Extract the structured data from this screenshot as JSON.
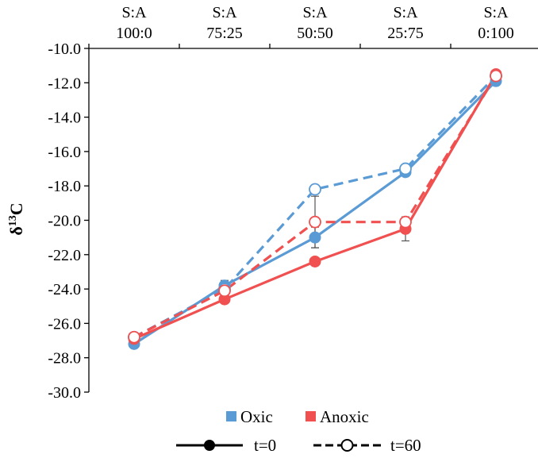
{
  "chart_data": {
    "type": "line",
    "categories": [
      {
        "top": "S:A",
        "bottom": "100:0"
      },
      {
        "top": "S:A",
        "bottom": "75:25"
      },
      {
        "top": "S:A",
        "bottom": "50:50"
      },
      {
        "top": "S:A",
        "bottom": "25:75"
      },
      {
        "top": "S:A",
        "bottom": "0:100"
      }
    ],
    "ylabel": {
      "main": "δ",
      "sup": "13",
      "suffix": "C"
    },
    "ylim": [
      -30,
      -10
    ],
    "yticks": [
      -10,
      -12,
      -14,
      -16,
      -18,
      -20,
      -22,
      -24,
      -26,
      -28,
      -30
    ],
    "ytick_labels": [
      "-10.0",
      "-12.0",
      "-14.0",
      "-16.0",
      "-18.0",
      "-20.0",
      "-22.0",
      "-24.0",
      "-26.0",
      "-28.0",
      "-30.0"
    ],
    "grid": false,
    "legend_position": "bottom",
    "colors": {
      "oxic": "#5B9BD5",
      "anoxic": "#F05050"
    },
    "series": [
      {
        "treatment": "Oxic",
        "time": "t=0",
        "style": "solid",
        "marker": "filled",
        "color": "#5B9BD5",
        "values": [
          -27.2,
          -23.8,
          -21.0,
          -17.2,
          -11.9
        ],
        "errors": [
          0.1,
          0.3,
          0.6,
          0.1,
          0.1
        ]
      },
      {
        "treatment": "Anoxic",
        "time": "t=0",
        "style": "solid",
        "marker": "filled",
        "color": "#F05050",
        "values": [
          -26.9,
          -24.6,
          -22.4,
          -20.5,
          -11.5
        ],
        "errors": [
          0.1,
          0.1,
          0.1,
          0.7,
          0.1
        ]
      },
      {
        "treatment": "Oxic",
        "time": "t=60",
        "style": "dashed",
        "marker": "open",
        "color": "#5B9BD5",
        "values": [
          -26.8,
          -24.0,
          -18.2,
          -17.0,
          -11.6
        ],
        "errors": [
          0.1,
          0.2,
          0.1,
          0.1,
          0.1
        ]
      },
      {
        "treatment": "Anoxic",
        "time": "t=60",
        "style": "dashed",
        "marker": "open",
        "color": "#F05050",
        "values": [
          -26.8,
          -24.1,
          -20.1,
          -20.1,
          -11.6
        ],
        "errors": [
          0.1,
          0.2,
          1.5,
          0.1,
          0.1
        ]
      }
    ],
    "legend": {
      "colors": [
        {
          "label": "Oxic",
          "color": "#5B9BD5"
        },
        {
          "label": "Anoxic",
          "color": "#F05050"
        }
      ],
      "styles": [
        {
          "label": "t=0",
          "style": "solid",
          "marker": "filled"
        },
        {
          "label": "t=60",
          "style": "dashed",
          "marker": "open"
        }
      ]
    }
  }
}
